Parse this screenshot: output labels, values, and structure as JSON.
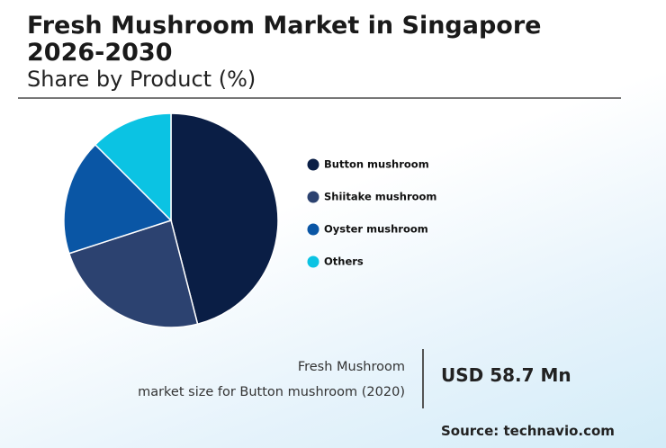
{
  "chart_data": {
    "type": "pie",
    "title": "Fresh Mushroom Market in Singapore 2026-2030",
    "subtitle": "Share by Product (%)",
    "categories": [
      "Button mushroom",
      "Shiitake mushroom",
      "Oyster mushroom",
      "Others"
    ],
    "values": [
      46,
      24,
      17.5,
      12.5
    ],
    "colors": [
      "#0a1e45",
      "#2c4270",
      "#0a56a5",
      "#0bc3e3"
    ]
  },
  "footer": {
    "label_line1": "Fresh Mushroom",
    "label_line2": "market size for Button mushroom (2020)",
    "value": "USD 58.7 Mn",
    "source": "Source: technavio.com"
  }
}
